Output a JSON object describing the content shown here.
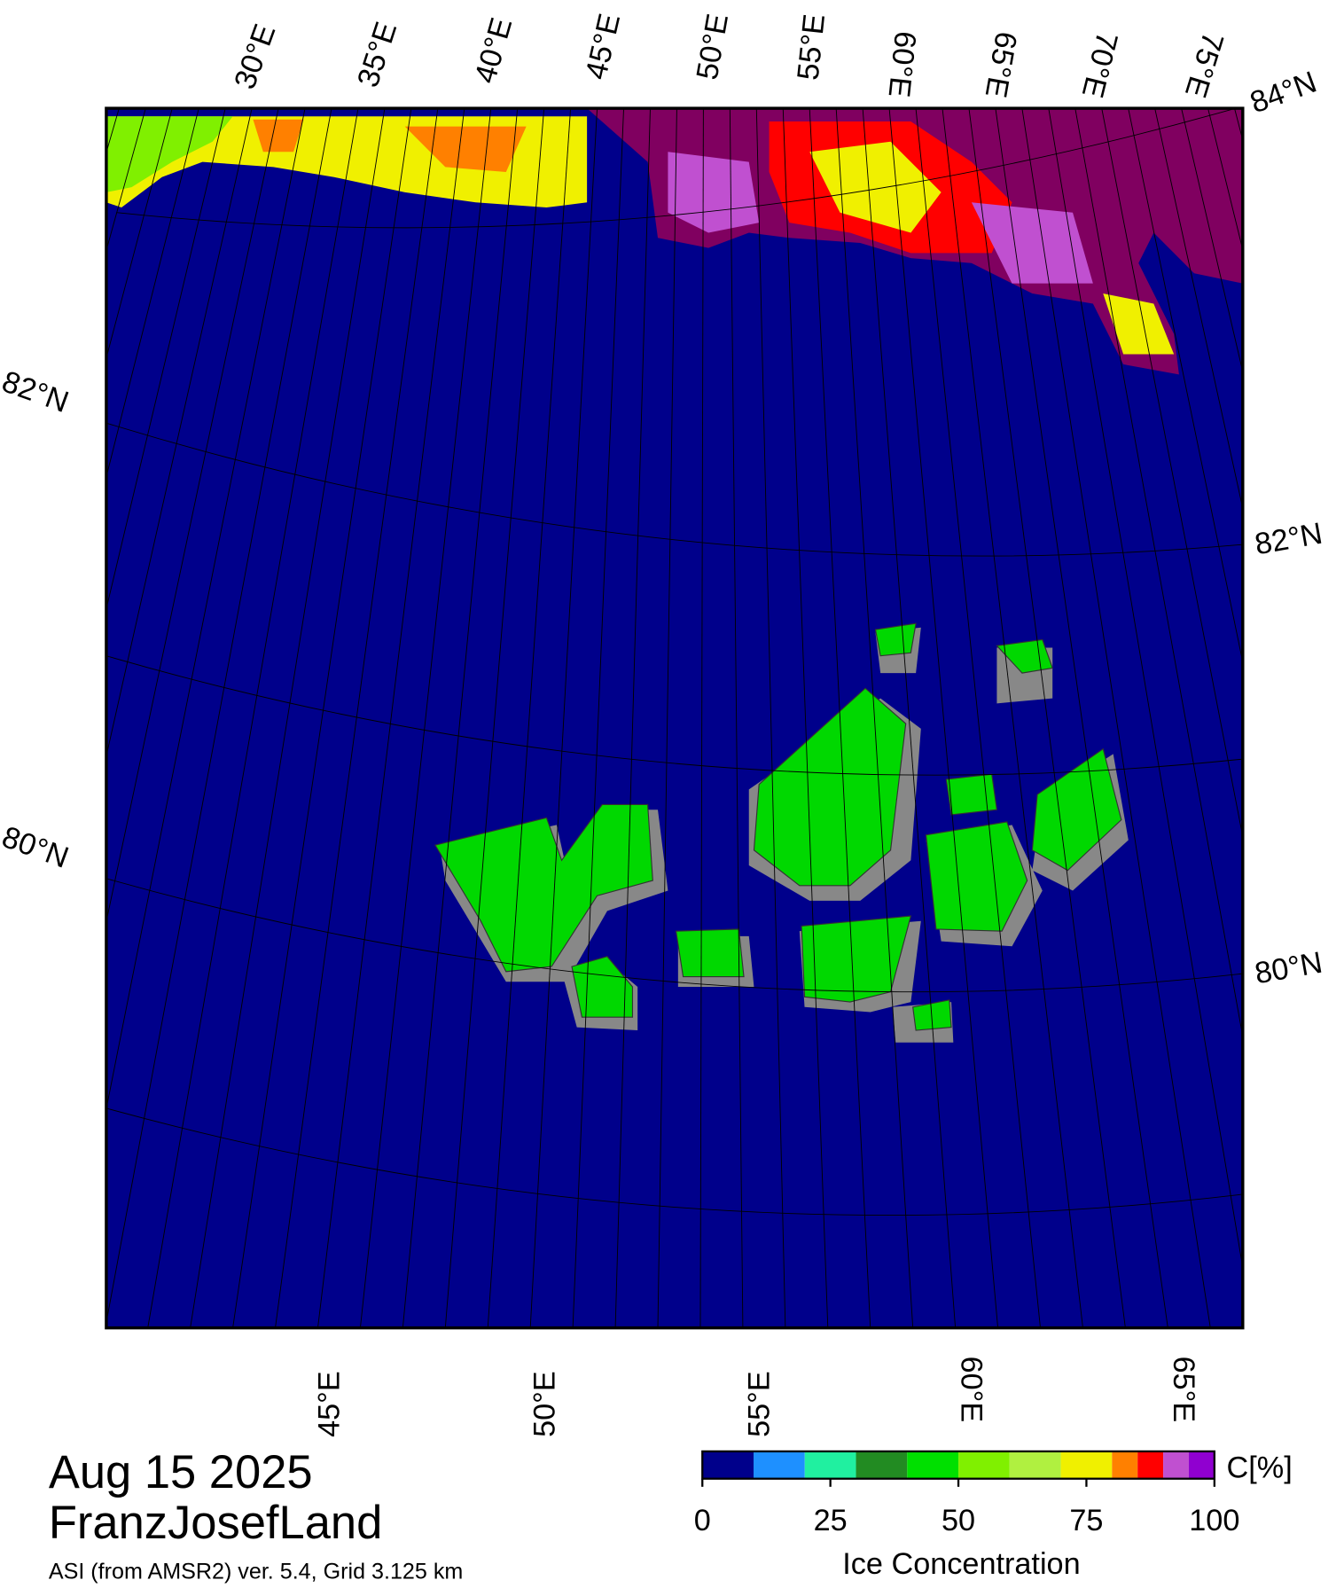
{
  "map": {
    "date": "Aug 15 2025",
    "region": "FranzJosefLand",
    "source": "ASI (from AMSR2) ver. 5.4,  Grid 3.125 km",
    "top_labels": [
      "30°E",
      "35°E",
      "40°E",
      "45°E",
      "50°E",
      "55°E",
      "60°E",
      "65°E",
      "70°E",
      "75°E"
    ],
    "corner_label": "84°N",
    "left_labels": [
      "82°N",
      "80°N"
    ],
    "right_labels": [
      "82°N",
      "80°N"
    ],
    "bottom_labels": [
      "45°E",
      "50°E",
      "55°E",
      "60°E",
      "65°E"
    ]
  },
  "colorbar": {
    "title": "Ice Concentration",
    "unit": "C[%]",
    "lim": [
      0,
      100
    ],
    "ticks": [
      0,
      25,
      50,
      75,
      100
    ],
    "bins": [
      0,
      10,
      20,
      30,
      40,
      50,
      60,
      70,
      80,
      85,
      90,
      95,
      100
    ],
    "colors": [
      "#00008b",
      "#1e90ff",
      "#20f0a0",
      "#228b22",
      "#00e000",
      "#80f000",
      "#b0f040",
      "#f0f000",
      "#ff8000",
      "#ff0000",
      "#c050d0",
      "#9000d0"
    ]
  }
}
